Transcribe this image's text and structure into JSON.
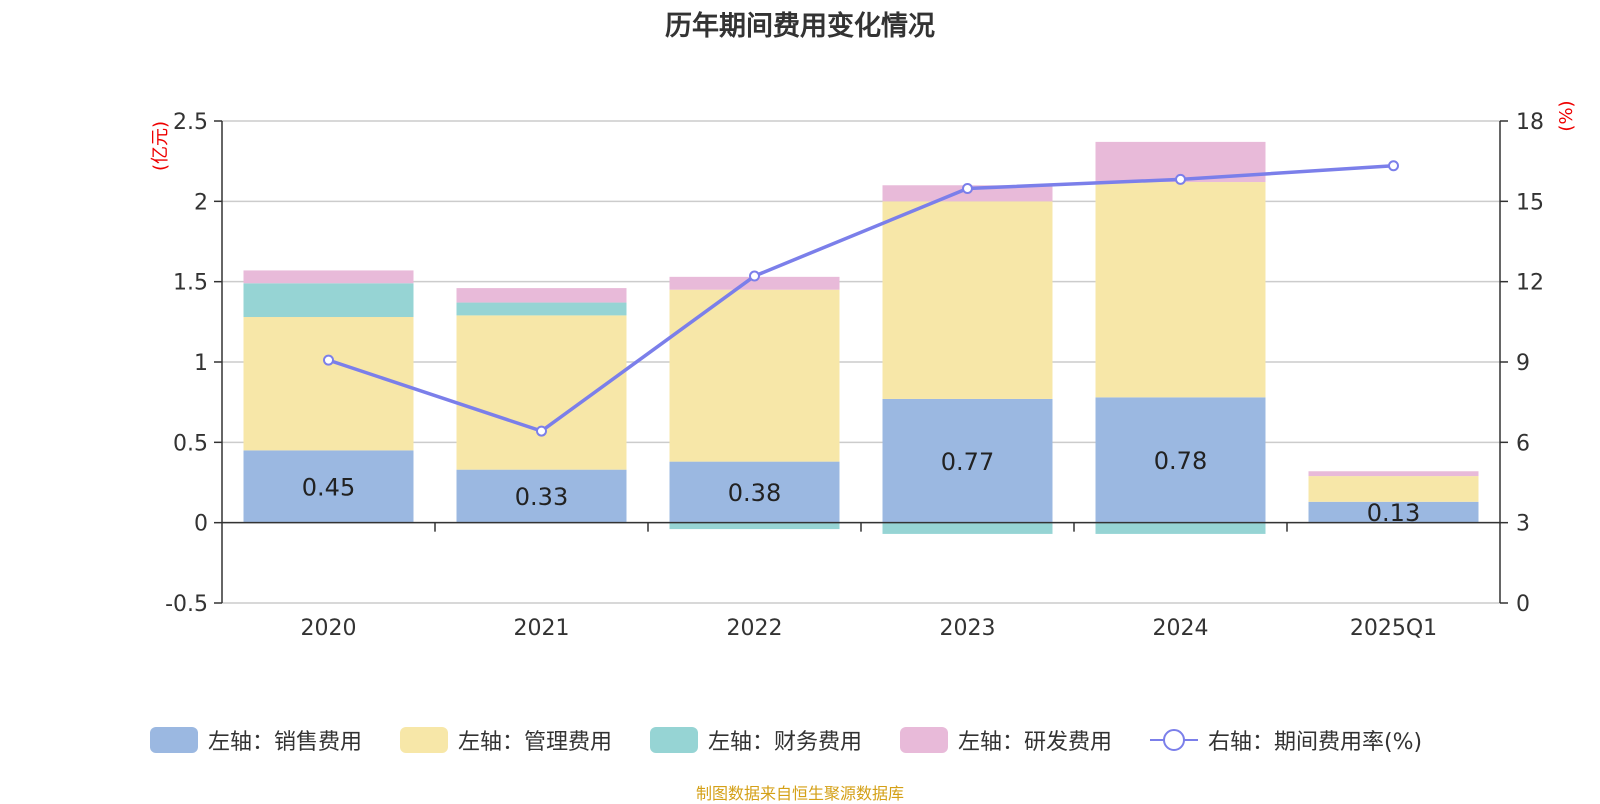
{
  "chart_data": {
    "type": "bar",
    "title": "历年期间费用变化情况",
    "categories": [
      "2020",
      "2021",
      "2022",
      "2023",
      "2024",
      "2025Q1"
    ],
    "left_axis": {
      "unit_label": "(亿元)",
      "ylim": [
        -0.5,
        2.5
      ],
      "ticks": [
        "-0.5",
        "0",
        "0.5",
        "1",
        "1.5",
        "2",
        "2.5"
      ]
    },
    "right_axis": {
      "unit_label": "(%)",
      "ylim": [
        0,
        18
      ],
      "ticks": [
        "0",
        "3",
        "6",
        "9",
        "12",
        "15",
        "18"
      ]
    },
    "grid": true,
    "legend_position": "bottom",
    "series": [
      {
        "name": "左轴：销售费用",
        "type": "bar",
        "axis": "left",
        "color": "#9bb8e1",
        "values": [
          0.45,
          0.33,
          0.38,
          0.77,
          0.78,
          0.13
        ],
        "labels": [
          "0.45",
          "0.33",
          "0.38",
          "0.77",
          "0.78",
          "0.13"
        ]
      },
      {
        "name": "左轴：管理费用",
        "type": "bar",
        "axis": "left",
        "color": "#f7e7a8",
        "values": [
          0.83,
          0.96,
          1.07,
          1.23,
          1.34,
          0.16
        ]
      },
      {
        "name": "左轴：财务费用",
        "type": "bar",
        "axis": "left",
        "color": "#96d4d4",
        "values": [
          0.21,
          0.08,
          -0.04,
          -0.07,
          -0.07,
          0.0
        ]
      },
      {
        "name": "左轴：研发费用",
        "type": "bar",
        "axis": "left",
        "color": "#e8bad9",
        "values": [
          0.08,
          0.09,
          0.08,
          0.1,
          0.25,
          0.03
        ]
      },
      {
        "name": "右轴：期间费用率(%)",
        "type": "line",
        "axis": "right",
        "color": "#7b7fea",
        "values": [
          9.07,
          6.42,
          12.21,
          15.48,
          15.82,
          16.33
        ]
      }
    ]
  },
  "source_note": "制图数据来自恒生聚源数据库"
}
